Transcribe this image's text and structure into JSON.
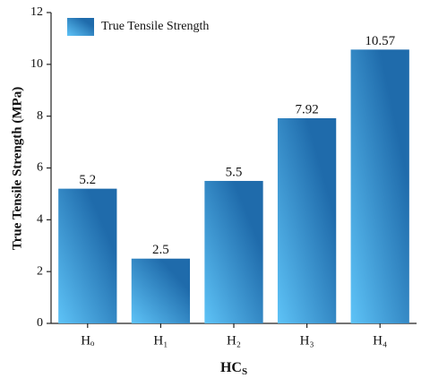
{
  "chart_data": {
    "type": "bar",
    "y_label": "True Tensile Strength (MPa)",
    "x_label": "HC",
    "x_label_subscript": "S",
    "categories": [
      "Hₒ",
      "H₁",
      "H₂",
      "H₃",
      "H₄"
    ],
    "series": [
      {
        "name": "True Tensile Strength",
        "color": "#1f6bab",
        "values": [
          5.2,
          2.5,
          5.5,
          7.92,
          10.57
        ]
      }
    ],
    "ylim": [
      0,
      12
    ],
    "yticks": [
      0,
      2,
      4,
      6,
      8,
      10,
      12
    ],
    "grid": false,
    "legend": "top-left"
  }
}
